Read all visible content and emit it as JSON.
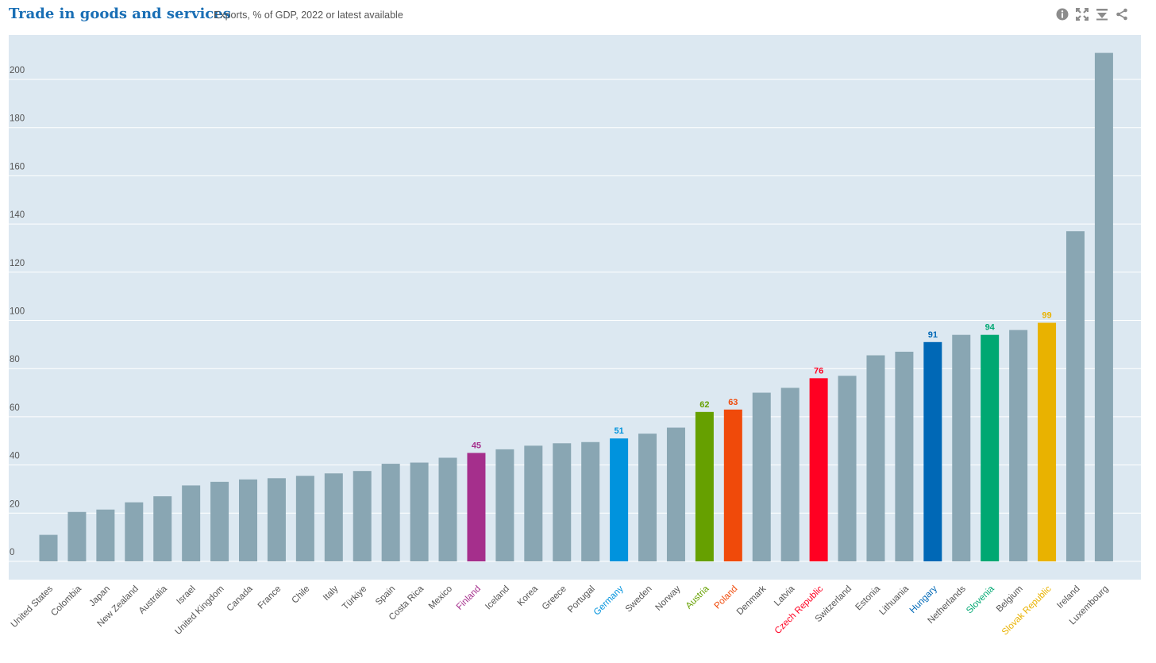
{
  "header": {
    "title": "Trade in goods and services",
    "subtitle": "Exports, % of GDP, 2022 or latest available"
  },
  "toolbar": {
    "icons": [
      "info-icon",
      "fullscreen-icon",
      "download-icon",
      "share-icon"
    ]
  },
  "colors": {
    "plot_background": "#dce8f1",
    "default_bar": "#89a6b3",
    "grid": "#ffffff",
    "title": "#1a6fb5"
  },
  "chart_data": {
    "type": "bar",
    "title": "Trade in goods and services",
    "subtitle": "Exports, % of GDP, 2022 or latest available",
    "xlabel": "",
    "ylabel": "",
    "ylim": [
      0,
      210
    ],
    "yticks": [
      0,
      20,
      40,
      60,
      80,
      100,
      120,
      140,
      160,
      180,
      200
    ],
    "grid": true,
    "categories": [
      "United States",
      "Colombia",
      "Japan",
      "New Zealand",
      "Australia",
      "Israel",
      "United Kingdom",
      "Canada",
      "France",
      "Chile",
      "Italy",
      "Türkiye",
      "Spain",
      "Costa Rica",
      "Mexico",
      "Finland",
      "Iceland",
      "Korea",
      "Greece",
      "Portugal",
      "Germany",
      "Sweden",
      "Norway",
      "Austria",
      "Poland",
      "Denmark",
      "Latvia",
      "Czech Republic",
      "Switzerland",
      "Estonia",
      "Lithuania",
      "Hungary",
      "Netherlands",
      "Slovenia",
      "Belgium",
      "Slovak Republic",
      "Ireland",
      "Luxembourg"
    ],
    "values": [
      11,
      20.5,
      21.5,
      24.5,
      27,
      31.5,
      33,
      34,
      34.5,
      35.5,
      36.5,
      37.5,
      40.5,
      41,
      43,
      45,
      46.5,
      48,
      49,
      49.5,
      51,
      53,
      55.5,
      62,
      63,
      70,
      72,
      76,
      77,
      85.5,
      87,
      91,
      94,
      94,
      96,
      99,
      137,
      211
    ],
    "highlights": [
      {
        "category": "Finland",
        "label": "45",
        "color": "#a52f8c"
      },
      {
        "category": "Germany",
        "label": "51",
        "color": "#0093dd"
      },
      {
        "category": "Austria",
        "label": "62",
        "color": "#66a000"
      },
      {
        "category": "Poland",
        "label": "63",
        "color": "#f04a0a"
      },
      {
        "category": "Czech Republic",
        "label": "76",
        "color": "#ff0022"
      },
      {
        "category": "Hungary",
        "label": "91",
        "color": "#0068b6"
      },
      {
        "category": "Slovenia",
        "label": "94",
        "color": "#00a872"
      },
      {
        "category": "Slovak Republic",
        "label": "99",
        "color": "#e9b200"
      }
    ]
  }
}
